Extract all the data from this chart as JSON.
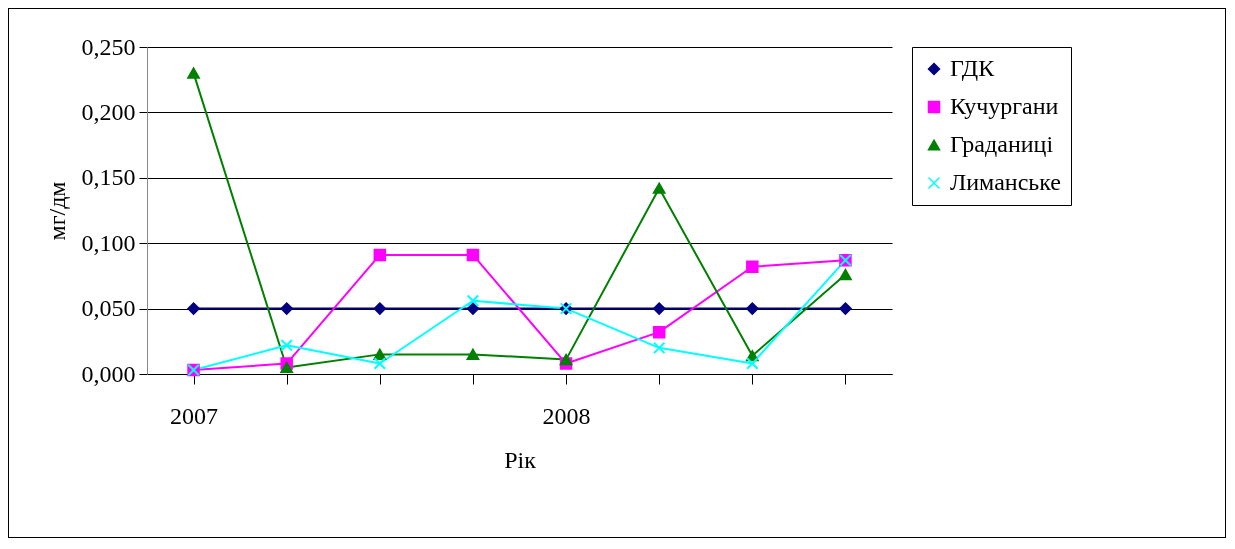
{
  "chart_data": {
    "type": "line",
    "xlabel": "Рік",
    "ylabel": "мг/дм",
    "categories": [
      "2007",
      null,
      null,
      null,
      "2008",
      null,
      null,
      null
    ],
    "series": [
      {
        "name": "ГДК",
        "color": "#000080",
        "marker": "diamond",
        "values": [
          0.05,
          0.05,
          0.05,
          0.05,
          0.05,
          0.05,
          0.05,
          0.05
        ]
      },
      {
        "name": "Кучургани",
        "color": "#ff00ff",
        "marker": "square",
        "values": [
          0.003,
          0.008,
          0.091,
          0.091,
          0.008,
          0.032,
          0.082,
          0.087
        ]
      },
      {
        "name": "Граданиці",
        "color": "#008000",
        "marker": "triangle",
        "values": [
          0.23,
          0.005,
          0.015,
          0.015,
          0.011,
          0.142,
          0.014,
          0.076
        ]
      },
      {
        "name": "Лиманське",
        "color": "#00ffff",
        "marker": "cross",
        "values": [
          0.003,
          0.022,
          0.008,
          0.056,
          0.05,
          0.02,
          0.008,
          0.087
        ]
      }
    ],
    "ylim": [
      0,
      0.25
    ],
    "yticks": [
      {
        "value": 0,
        "label": "0,000"
      },
      {
        "value": 0.05,
        "label": "0,050"
      },
      {
        "value": 0.1,
        "label": "0,100"
      },
      {
        "value": 0.15,
        "label": "0,150"
      },
      {
        "value": 0.2,
        "label": "0,200"
      },
      {
        "value": 0.25,
        "label": "0,250"
      }
    ],
    "grid": "y",
    "legend": "right",
    "line_style": "solid"
  }
}
